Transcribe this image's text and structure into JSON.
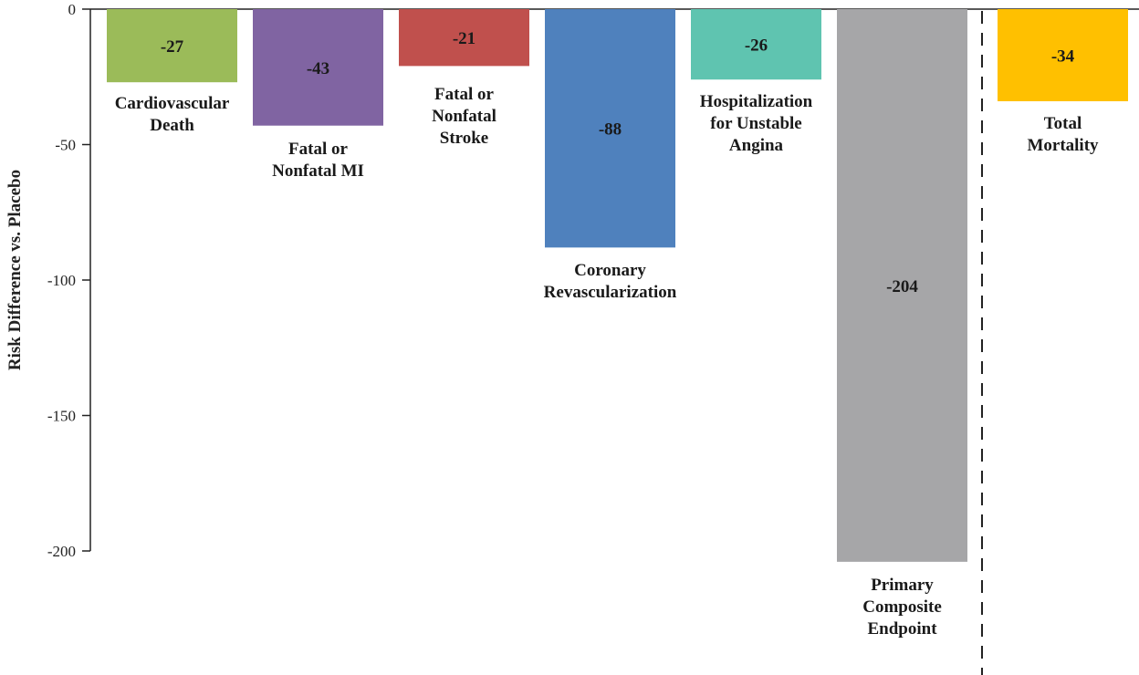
{
  "chart_data": {
    "type": "bar",
    "ylabel": "Risk Difference vs. Placebo",
    "ylim": [
      -205,
      0
    ],
    "yticks": [
      0,
      -50,
      -100,
      -150,
      -200
    ],
    "grid": false,
    "categories": [
      "Cardiovascular Death",
      "Fatal or Nonfatal MI",
      "Fatal or Nonfatal Stroke",
      "Coronary Revascularization",
      "Hospitalization for Unstable Angina",
      "Primary Composite Endpoint",
      "Total Mortality"
    ],
    "category_label_lines": [
      [
        "Cardiovascular",
        "Death"
      ],
      [
        "Fatal or",
        "Nonfatal MI"
      ],
      [
        "Fatal or",
        "Nonfatal",
        "Stroke"
      ],
      [
        "Coronary",
        "Revascularization"
      ],
      [
        "Hospitalization",
        "for Unstable",
        "Angina"
      ],
      [
        "Primary",
        "Composite",
        "Endpoint"
      ],
      [
        "Total",
        "Mortality"
      ]
    ],
    "values": [
      -27,
      -43,
      -21,
      -88,
      -26,
      -204,
      -34
    ],
    "data_labels": [
      "-27",
      "-43",
      "-21",
      "-88",
      "-26",
      "-204",
      "-34"
    ],
    "colors": [
      "#9BBB59",
      "#8064A2",
      "#C0504D",
      "#4F81BD",
      "#5FC4B0",
      "#A6A6A8",
      "#FFC000"
    ],
    "separator": "dashed vertical line between Primary Composite Endpoint and Total Mortality"
  }
}
